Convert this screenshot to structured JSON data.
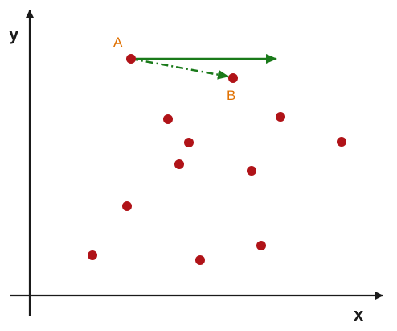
{
  "axes": {
    "x_label": "x",
    "y_label": "y",
    "color": "#1a1a1a"
  },
  "labels": {
    "point_a": "A",
    "point_b": "B",
    "color": "#e07000"
  },
  "colors": {
    "point": "#b01318",
    "arrow": "#1a7a1a"
  },
  "arrows": [
    {
      "name": "solid-arrow",
      "from": "A",
      "style": "solid"
    },
    {
      "name": "dash-dot-arrow",
      "from": "A",
      "to": "B",
      "style": "dash-dot"
    }
  ]
}
